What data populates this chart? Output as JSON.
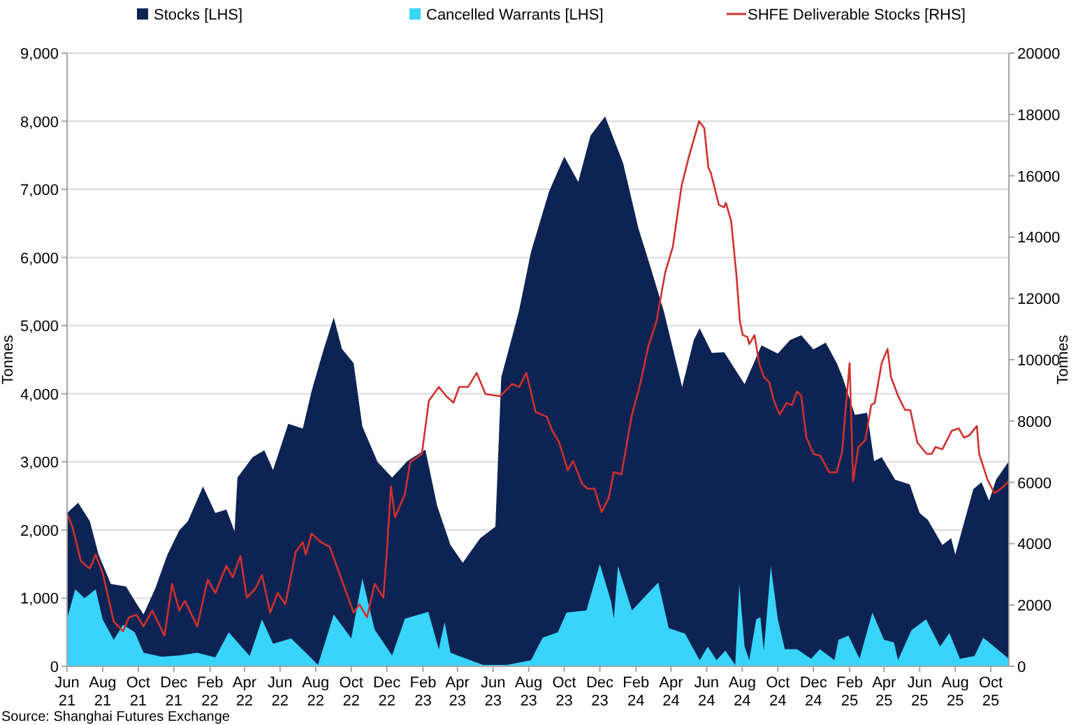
{
  "chart_data": {
    "type": "area",
    "xlim": [
      "2021-06-01",
      "2025-11-01"
    ],
    "xticks": [
      {
        "value": "2021-06",
        "label": "Jun 21"
      },
      {
        "value": "2021-08",
        "label": "Aug 21"
      },
      {
        "value": "2021-10",
        "label": "Oct 21"
      },
      {
        "value": "2021-12",
        "label": "Dec 21"
      },
      {
        "value": "2022-02",
        "label": "Feb 22"
      },
      {
        "value": "2022-04",
        "label": "Apr 22"
      },
      {
        "value": "2022-06",
        "label": "Jun 22"
      },
      {
        "value": "2022-08",
        "label": "Aug 22"
      },
      {
        "value": "2022-10",
        "label": "Oct 22"
      },
      {
        "value": "2022-12",
        "label": "Dec 22"
      },
      {
        "value": "2023-02",
        "label": "Feb 23"
      },
      {
        "value": "2023-04",
        "label": "Apr 23"
      },
      {
        "value": "2023-06",
        "label": "Jun 23"
      },
      {
        "value": "2023-08",
        "label": "Aug 23"
      },
      {
        "value": "2023-10",
        "label": "Oct 23"
      },
      {
        "value": "2023-12",
        "label": "Dec 23"
      },
      {
        "value": "2024-02",
        "label": "Feb 24"
      },
      {
        "value": "2024-04",
        "label": "Apr 24"
      },
      {
        "value": "2024-06",
        "label": "Jun 24"
      },
      {
        "value": "2024-08",
        "label": "Aug 24"
      },
      {
        "value": "2024-10",
        "label": "Oct 24"
      },
      {
        "value": "2024-12",
        "label": "Dec 24"
      },
      {
        "value": "2025-02",
        "label": "Feb 25"
      },
      {
        "value": "2025-04",
        "label": "Apr 25"
      },
      {
        "value": "2025-06",
        "label": "Jun 25"
      },
      {
        "value": "2025-08",
        "label": "Aug 25"
      },
      {
        "value": "2025-10",
        "label": "Oct 25"
      }
    ],
    "ylim": [
      0,
      9000
    ],
    "yticks": [
      {
        "value": 0,
        "label": "0"
      },
      {
        "value": 1000,
        "label": "1,000"
      },
      {
        "value": 2000,
        "label": "2,000"
      },
      {
        "value": 3000,
        "label": "3,000"
      },
      {
        "value": 4000,
        "label": "4,000"
      },
      {
        "value": 5000,
        "label": "5,000"
      },
      {
        "value": 6000,
        "label": "6,000"
      },
      {
        "value": 7000,
        "label": "7,000"
      },
      {
        "value": 8000,
        "label": "8,000"
      },
      {
        "value": 9000,
        "label": "9,000"
      }
    ],
    "y2lim": [
      0,
      20000
    ],
    "y2ticks": [
      0,
      2000,
      4000,
      6000,
      8000,
      10000,
      12000,
      14000,
      16000,
      18000,
      20000
    ],
    "ylabel": "Tonnes",
    "y2label": "Tonnes",
    "grid": "y",
    "legend": "top",
    "annotations": [
      "Source: Shanghai Futures Exchange"
    ],
    "series": [
      {
        "name": "Stocks [LHS]",
        "color": "#0c2354",
        "x": [
          "2021-06-01",
          "2021-06-20",
          "2021-07-10",
          "2021-07-25",
          "2021-08-15",
          "2021-09-10",
          "2021-09-25",
          "2021-10-10",
          "2021-10-30",
          "2021-11-20",
          "2021-12-10",
          "2021-12-25",
          "2022-01-20",
          "2022-02-10",
          "2022-03-01",
          "2022-03-15",
          "2022-03-20",
          "2022-04-15",
          "2022-05-05",
          "2022-05-20",
          "2022-06-15",
          "2022-07-10",
          "2022-07-25",
          "2022-08-15",
          "2022-09-01",
          "2022-09-15",
          "2022-10-05",
          "2022-10-20",
          "2022-11-15",
          "2022-12-10",
          "2023-01-05",
          "2023-02-05",
          "2023-02-25",
          "2023-03-20",
          "2023-04-10",
          "2023-05-10",
          "2023-06-05",
          "2023-06-15",
          "2023-07-15",
          "2023-08-05",
          "2023-09-05",
          "2023-10-01",
          "2023-10-25",
          "2023-11-15",
          "2023-12-10",
          "2024-01-10",
          "2024-02-05",
          "2024-02-25",
          "2024-03-20",
          "2024-04-20",
          "2024-05-10",
          "2024-05-20",
          "2024-06-10",
          "2024-07-01",
          "2024-08-05",
          "2024-09-03",
          "2024-10-01",
          "2024-10-22",
          "2024-11-10",
          "2024-12-01",
          "2024-12-22",
          "2025-01-10",
          "2025-01-20",
          "2025-02-10",
          "2025-03-03",
          "2025-03-15",
          "2025-03-28",
          "2025-04-20",
          "2025-05-15",
          "2025-06-01",
          "2025-06-15",
          "2025-07-10",
          "2025-07-25",
          "2025-08-01",
          "2025-09-01",
          "2025-09-15",
          "2025-09-28",
          "2025-10-10",
          "2025-11-01"
        ],
        "values": [
          2250,
          2400,
          2130,
          1640,
          1210,
          1170,
          960,
          760,
          1140,
          1640,
          1990,
          2130,
          2640,
          2250,
          2300,
          1980,
          2770,
          3070,
          3170,
          2880,
          3560,
          3490,
          4040,
          4660,
          5120,
          4660,
          4450,
          3520,
          3000,
          2770,
          3010,
          3180,
          2360,
          1780,
          1520,
          1880,
          2050,
          4240,
          5200,
          6080,
          6970,
          7480,
          7110,
          7790,
          8070,
          7380,
          6430,
          5880,
          5200,
          4100,
          4790,
          4960,
          4600,
          4610,
          4140,
          4710,
          4590,
          4790,
          4860,
          4650,
          4750,
          4450,
          4240,
          3690,
          3720,
          3010,
          3070,
          2740,
          2670,
          2250,
          2150,
          1780,
          1880,
          1640,
          2600,
          2700,
          2430,
          2740,
          3010
        ]
      },
      {
        "name": "Cancelled Warrants [LHS]",
        "color": "#38d4fa",
        "x": [
          "2021-06-01",
          "2021-06-15",
          "2021-07-01",
          "2021-07-20",
          "2021-08-01",
          "2021-08-20",
          "2021-09-05",
          "2021-09-25",
          "2021-10-10",
          "2021-11-10",
          "2021-12-10",
          "2022-01-10",
          "2022-02-10",
          "2022-03-05",
          "2022-04-10",
          "2022-05-01",
          "2022-05-20",
          "2022-06-20",
          "2022-07-15",
          "2022-08-05",
          "2022-09-01",
          "2022-10-01",
          "2022-10-20",
          "2022-11-10",
          "2022-12-10",
          "2023-01-01",
          "2023-02-10",
          "2023-02-28",
          "2023-03-10",
          "2023-03-20",
          "2023-04-10",
          "2023-05-15",
          "2023-06-25",
          "2023-08-05",
          "2023-08-25",
          "2023-09-20",
          "2023-10-05",
          "2023-11-08",
          "2023-12-01",
          "2023-12-20",
          "2023-12-25",
          "2024-01-01",
          "2024-01-25",
          "2024-03-10",
          "2024-03-28",
          "2024-04-25",
          "2024-05-20",
          "2024-06-03",
          "2024-06-18",
          "2024-07-03",
          "2024-07-20",
          "2024-07-27",
          "2024-08-05",
          "2024-08-13",
          "2024-08-25",
          "2024-09-01",
          "2024-09-07",
          "2024-09-19",
          "2024-10-01",
          "2024-10-13",
          "2024-11-03",
          "2024-11-27",
          "2024-12-12",
          "2025-01-06",
          "2025-01-13",
          "2025-01-30",
          "2025-02-18",
          "2025-03-12",
          "2025-04-01",
          "2025-04-18",
          "2025-04-25",
          "2025-05-18",
          "2025-06-12",
          "2025-07-06",
          "2025-07-22",
          "2025-08-09",
          "2025-09-03",
          "2025-09-18",
          "2025-10-12",
          "2025-11-01"
        ],
        "values": [
          700,
          1130,
          1000,
          1130,
          690,
          390,
          610,
          500,
          200,
          140,
          160,
          200,
          130,
          500,
          150,
          690,
          330,
          410,
          200,
          20,
          760,
          410,
          1290,
          540,
          160,
          700,
          800,
          250,
          650,
          200,
          130,
          20,
          20,
          90,
          420,
          500,
          790,
          820,
          1500,
          960,
          700,
          1470,
          820,
          1230,
          560,
          480,
          90,
          290,
          90,
          230,
          20,
          1210,
          290,
          90,
          690,
          720,
          230,
          1470,
          690,
          250,
          250,
          110,
          250,
          90,
          390,
          450,
          110,
          790,
          390,
          350,
          90,
          530,
          690,
          290,
          490,
          110,
          150,
          420,
          250,
          110
        ]
      },
      {
        "name": "SHFE Deliverable Stocks [RHS]",
        "type": "line",
        "axis": "y2",
        "color": "#d0312d",
        "x": [
          "2021-06-01",
          "2021-06-10",
          "2021-06-25",
          "2021-07-10",
          "2021-07-20",
          "2021-08-01",
          "2021-08-20",
          "2021-09-05",
          "2021-09-15",
          "2021-09-28",
          "2021-10-10",
          "2021-10-25",
          "2021-11-15",
          "2021-11-28",
          "2021-12-10",
          "2021-12-20",
          "2022-01-10",
          "2022-01-28",
          "2022-02-10",
          "2022-03-01",
          "2022-03-12",
          "2022-03-25",
          "2022-04-05",
          "2022-04-20",
          "2022-05-01",
          "2022-05-15",
          "2022-05-28",
          "2022-06-10",
          "2022-06-28",
          "2022-07-10",
          "2022-07-15",
          "2022-07-25",
          "2022-08-10",
          "2022-08-25",
          "2022-09-20",
          "2022-10-05",
          "2022-10-15",
          "2022-10-28",
          "2022-11-10",
          "2022-11-25",
          "2022-12-01",
          "2022-12-08",
          "2022-12-15",
          "2023-01-01",
          "2023-01-10",
          "2023-01-30",
          "2023-02-11",
          "2023-02-28",
          "2023-03-13",
          "2023-03-25",
          "2023-04-04",
          "2023-04-19",
          "2023-05-04",
          "2023-05-19",
          "2023-06-13",
          "2023-07-04",
          "2023-07-16",
          "2023-07-28",
          "2023-08-13",
          "2023-09-01",
          "2023-09-10",
          "2023-09-22",
          "2023-10-07",
          "2023-10-16",
          "2023-11-01",
          "2023-11-10",
          "2023-11-22",
          "2023-12-04",
          "2023-12-16",
          "2023-12-25",
          "2024-01-07",
          "2024-01-25",
          "2024-02-07",
          "2024-02-22",
          "2024-03-07",
          "2024-03-22",
          "2024-04-04",
          "2024-04-19",
          "2024-05-01",
          "2024-05-19",
          "2024-05-28",
          "2024-06-04",
          "2024-06-08",
          "2024-06-16",
          "2024-06-22",
          "2024-07-01",
          "2024-07-04",
          "2024-07-13",
          "2024-07-22",
          "2024-07-28",
          "2024-08-02",
          "2024-08-10",
          "2024-08-13",
          "2024-08-22",
          "2024-08-30",
          "2024-09-07",
          "2024-09-16",
          "2024-09-24",
          "2024-10-04",
          "2024-10-16",
          "2024-10-25",
          "2024-11-03",
          "2024-11-10",
          "2024-11-19",
          "2024-12-01",
          "2024-12-13",
          "2024-12-28",
          "2025-01-10",
          "2025-01-19",
          "2025-02-01",
          "2025-02-07",
          "2025-02-16",
          "2025-02-28",
          "2025-03-10",
          "2025-03-16",
          "2025-03-28",
          "2025-04-07",
          "2025-04-13",
          "2025-04-25",
          "2025-05-07",
          "2025-05-16",
          "2025-05-28",
          "2025-06-13",
          "2025-06-22",
          "2025-06-28",
          "2025-07-10",
          "2025-07-26",
          "2025-08-07",
          "2025-08-16",
          "2025-08-25",
          "2025-09-07",
          "2025-09-11",
          "2025-09-25",
          "2025-10-07",
          "2025-10-19",
          "2025-11-01"
        ],
        "values": [
          4970,
          4560,
          3420,
          3190,
          3640,
          3050,
          1460,
          1140,
          1600,
          1680,
          1300,
          1820,
          1000,
          2690,
          1820,
          2140,
          1300,
          2830,
          2390,
          3280,
          2900,
          3600,
          2240,
          2540,
          2980,
          1750,
          2390,
          2020,
          3740,
          4050,
          3640,
          4330,
          4050,
          3900,
          2540,
          1750,
          2020,
          1600,
          2690,
          2240,
          3740,
          5870,
          4860,
          5620,
          6660,
          6930,
          8660,
          9110,
          8810,
          8600,
          9110,
          9110,
          9570,
          8880,
          8810,
          9210,
          9110,
          9570,
          8290,
          8140,
          7700,
          7320,
          6390,
          6700,
          5940,
          5790,
          5790,
          5030,
          5480,
          6330,
          6260,
          8210,
          9110,
          10430,
          11250,
          12850,
          13680,
          15660,
          16580,
          17780,
          17550,
          16260,
          16110,
          15500,
          15050,
          14970,
          15120,
          14520,
          12770,
          11250,
          10800,
          10740,
          10510,
          10800,
          9890,
          9430,
          9280,
          8670,
          8210,
          8590,
          8520,
          8970,
          8820,
          7460,
          6930,
          6860,
          6330,
          6330,
          7000,
          9890,
          6030,
          7150,
          7380,
          8520,
          8590,
          9890,
          10350,
          9430,
          8820,
          8360,
          8360,
          7300,
          6930,
          6930,
          7150,
          7080,
          7680,
          7760,
          7460,
          7530,
          7840,
          6930,
          6100,
          5650,
          5800,
          6030
        ]
      }
    ]
  }
}
